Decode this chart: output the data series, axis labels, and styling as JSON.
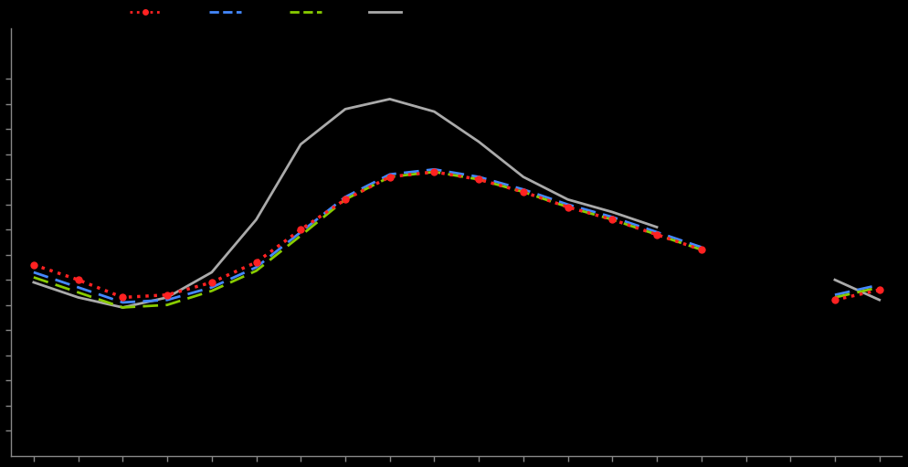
{
  "background_color": "#000000",
  "axes_background": "#000000",
  "spine_color": "#888888",
  "tick_color": "#888888",
  "line1_color": "#ff2222",
  "line2_color": "#4488ff",
  "line3_color": "#88cc00",
  "line4_color": "#aaaaaa",
  "line1_markersize": 5,
  "line2_linewidth": 2.0,
  "line3_linewidth": 2.0,
  "line4_linewidth": 2.0,
  "x": [
    1,
    2,
    3,
    4,
    5,
    6,
    7,
    8,
    9,
    10,
    11,
    12,
    13,
    14,
    15,
    16,
    17,
    18,
    19,
    20
  ],
  "y1": [
    3.8,
    3.5,
    3.15,
    3.2,
    3.45,
    3.85,
    4.5,
    5.1,
    5.55,
    5.65,
    5.5,
    5.25,
    4.95,
    4.7,
    4.4,
    4.1,
    null,
    null,
    3.1,
    3.3
  ],
  "y2": [
    3.65,
    3.35,
    3.05,
    3.1,
    3.35,
    3.75,
    4.45,
    5.15,
    5.6,
    5.7,
    5.55,
    5.3,
    5.0,
    4.75,
    4.45,
    4.15,
    null,
    null,
    3.2,
    3.4
  ],
  "y3": [
    3.55,
    3.25,
    2.95,
    3.0,
    3.28,
    3.68,
    4.38,
    5.1,
    5.55,
    5.65,
    5.5,
    5.25,
    4.95,
    4.7,
    4.4,
    4.1,
    null,
    null,
    3.15,
    3.35
  ],
  "y4": [
    3.45,
    3.15,
    2.95,
    3.15,
    3.65,
    4.7,
    6.2,
    6.9,
    7.1,
    6.85,
    6.25,
    5.55,
    5.1,
    4.85,
    4.55,
    null,
    null,
    null,
    3.5,
    3.1
  ],
  "ylim": [
    0.0,
    8.5
  ],
  "xlim": [
    0.5,
    20.5
  ],
  "figsize": [
    9.94,
    5.11
  ],
  "dpi": 100,
  "yticks": [
    0.5,
    1.0,
    1.5,
    2.0,
    2.5,
    3.0,
    3.5,
    4.0,
    4.5,
    5.0,
    5.5,
    6.0,
    6.5,
    7.0,
    7.5
  ]
}
